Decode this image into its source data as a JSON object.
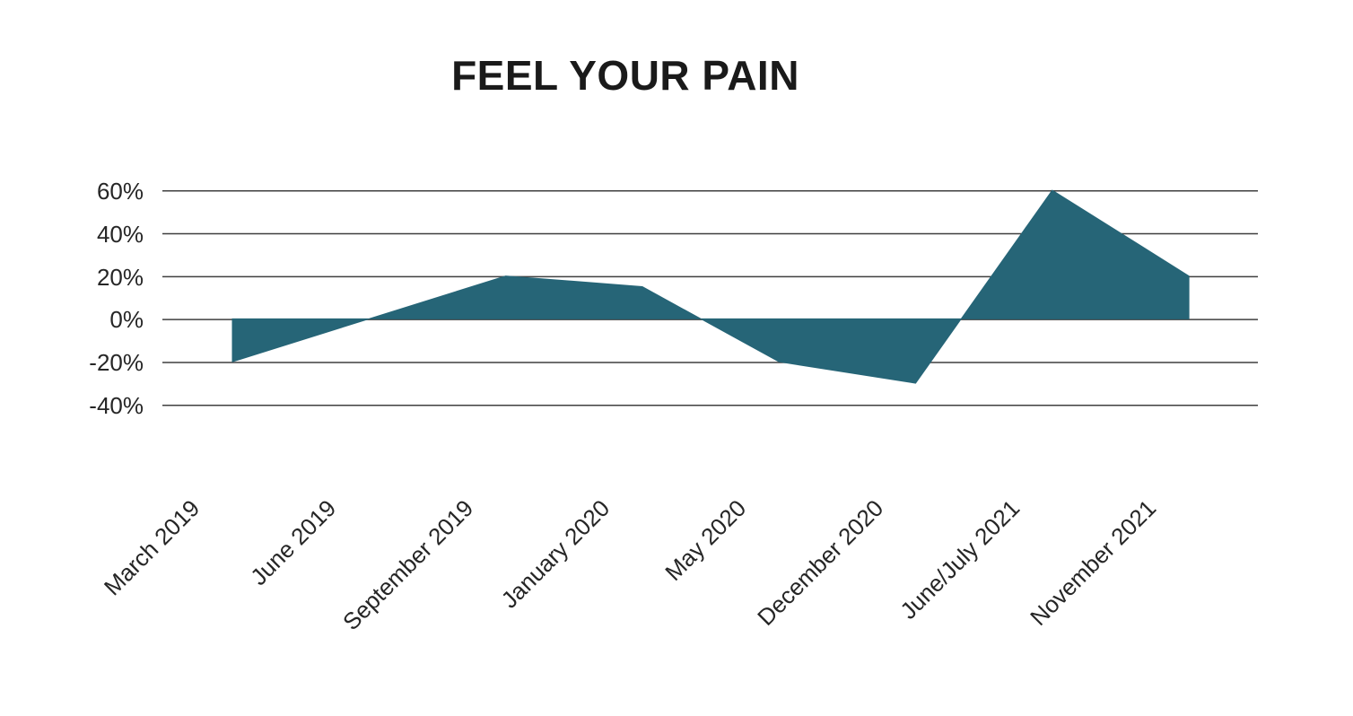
{
  "title": "FEEL YOUR PAIN",
  "chart_data": {
    "type": "area",
    "title": "FEEL YOUR PAIN",
    "categories": [
      "March 2019",
      "June 2019",
      "September 2019",
      "January 2020",
      "May 2020",
      "December 2020",
      "June/July 2021",
      "November 2021"
    ],
    "values": [
      -20,
      0,
      20,
      15,
      -20,
      -30,
      60,
      20
    ],
    "unit": "%",
    "xlabel": "",
    "ylabel": "",
    "ylim": [
      -40,
      60
    ],
    "y_ticks": [
      60,
      40,
      20,
      0,
      -20,
      -40
    ],
    "y_tick_labels": [
      "60%",
      "40%",
      "20%",
      "0%",
      "-20%",
      "-40%"
    ],
    "baseline": 0,
    "grid": "horizontal",
    "legend": "none",
    "fill_color": "#266577",
    "gridline_color": "#3f3f3f",
    "text_color": "#262626"
  }
}
